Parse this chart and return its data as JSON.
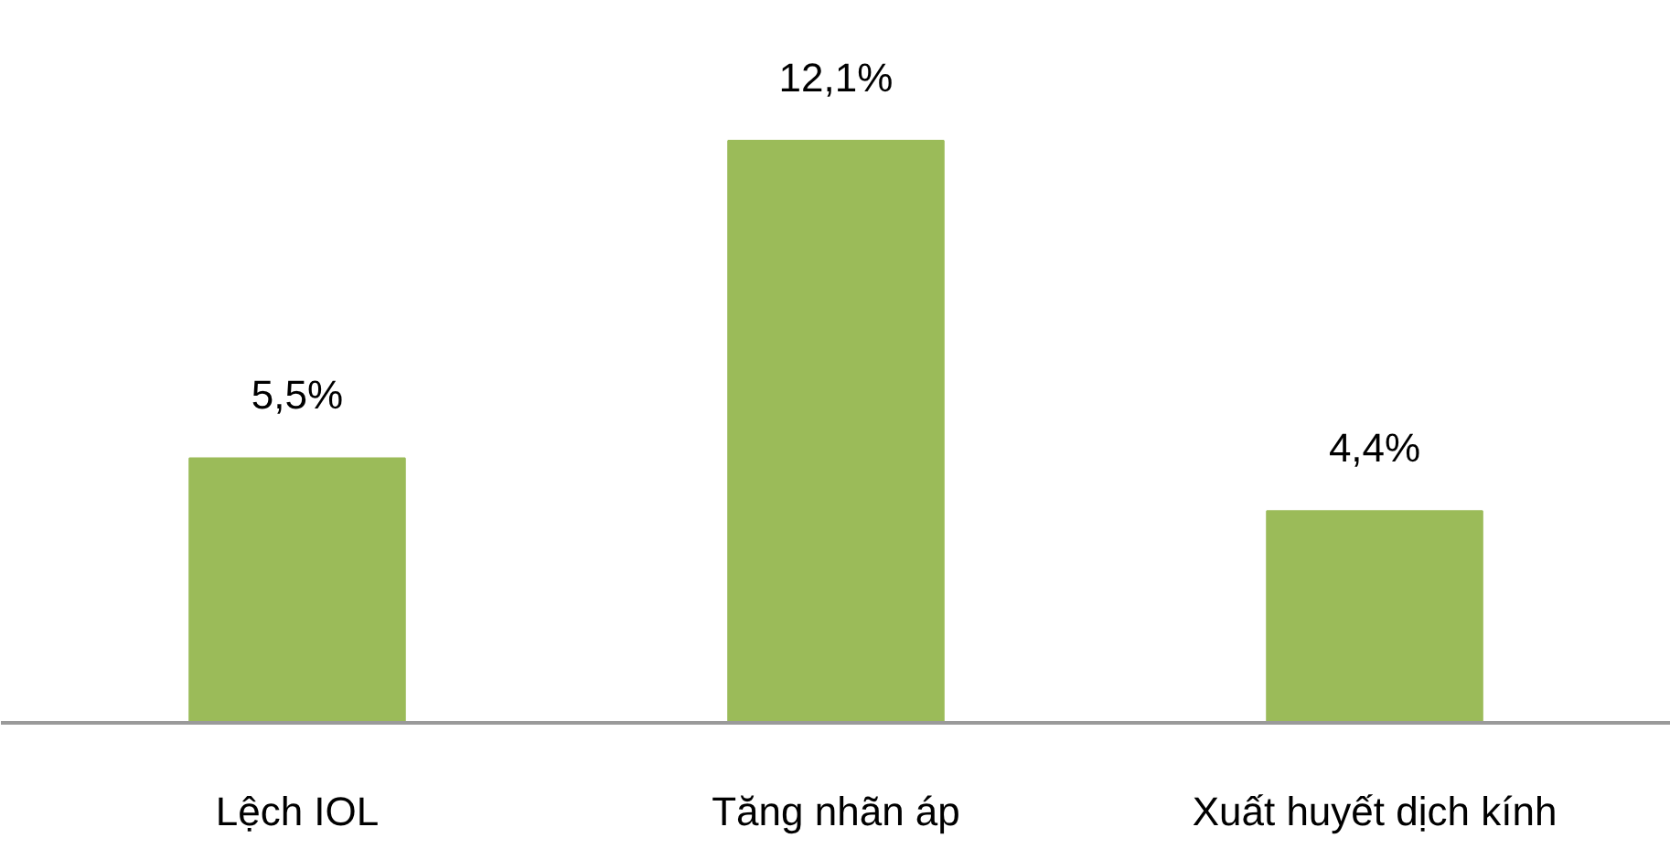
{
  "chart_data": {
    "type": "bar",
    "categories": [
      "Lệch IOL",
      "Tăng nhãn áp",
      "Xuất huyết dịch kính"
    ],
    "values": [
      5.5,
      12.1,
      4.4
    ],
    "color": "#9bbb59",
    "value_labels": [
      "5,5%",
      "12,1%",
      "4,4%"
    ]
  }
}
